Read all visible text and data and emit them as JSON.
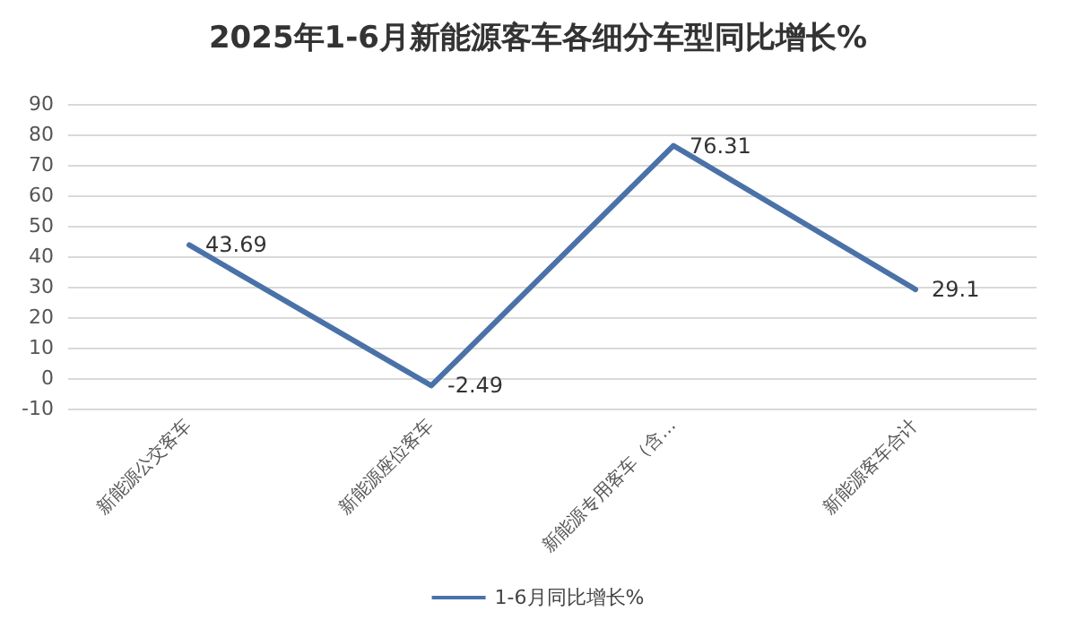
{
  "chart_data": {
    "type": "line",
    "title": "2025年1-6月新能源客车各细分车型同比增长%",
    "categories": [
      "新能源公交客车",
      "新能源座位客车",
      "新能源专用客车（含…",
      "新能源客车合计"
    ],
    "series": [
      {
        "name": "1-6月同比增长%",
        "color": "#4a72a8",
        "values": [
          43.69,
          -2.49,
          76.31,
          29.1
        ]
      }
    ],
    "ylim": [
      -10,
      90
    ],
    "yticks": [
      -10,
      0,
      10,
      20,
      30,
      40,
      50,
      60,
      70,
      80,
      90
    ],
    "grid": "y",
    "legend": "bottom",
    "marker": "none",
    "line_style": "solid",
    "data_labels": true
  }
}
